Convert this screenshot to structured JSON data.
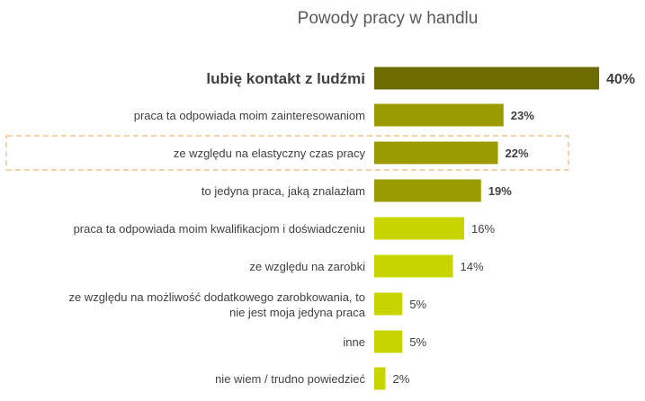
{
  "chart_data": {
    "type": "bar",
    "orientation": "horizontal",
    "title": "Powody pracy w handlu",
    "categories": [
      "lubię kontakt z ludźmi",
      "praca ta odpowiada moim zainteresowaniom",
      "ze względu na elastyczny czas pracy",
      "to jedyna praca, jaką znalazłam",
      "praca ta odpowiada moim kwalifikacjom i doświadczeniu",
      "ze względu na zarobki",
      "ze względu na możliwość dodatkowego zarobkowania, to nie jest moja jedyna praca",
      "inne",
      "nie wiem / trudno powiedzieć"
    ],
    "category_lines": [
      [
        "lubię kontakt z ludźmi"
      ],
      [
        "praca ta odpowiada moim zainteresowaniom"
      ],
      [
        "ze względu na elastyczny czas pracy"
      ],
      [
        "to jedyna praca, jaką znalazłam"
      ],
      [
        "praca ta odpowiada moim kwalifikacjom i doświadczeniu"
      ],
      [
        "ze względu na zarobki"
      ],
      [
        "ze względu na możliwość dodatkowego zarobkowania, to",
        "nie jest moja jedyna praca"
      ],
      [
        "inne"
      ],
      [
        "nie wiem / trudno powiedzieć"
      ]
    ],
    "values": [
      40,
      23,
      22,
      19,
      16,
      14,
      5,
      5,
      2
    ],
    "data_labels": [
      "40%",
      "23%",
      "22%",
      "19%",
      "16%",
      "14%",
      "5%",
      "5%",
      "2%"
    ],
    "unit": "%",
    "xlim": [
      0,
      40
    ],
    "grid": false,
    "legend": "none",
    "highlighted_category": "ze względu na elastyczny czas pracy",
    "colors": {
      "top": "#6b6b00",
      "mid": "#9b9b00",
      "low": "#c8d400",
      "highlight_border": "#f0c48a",
      "label_text": "#404040"
    },
    "bar_color_groups": [
      "top",
      "mid",
      "mid",
      "mid",
      "low",
      "low",
      "low",
      "low",
      "low"
    ],
    "bold_labels": [
      true,
      true,
      true,
      true,
      false,
      false,
      false,
      false,
      false
    ],
    "emphasized_category_index": 0
  }
}
